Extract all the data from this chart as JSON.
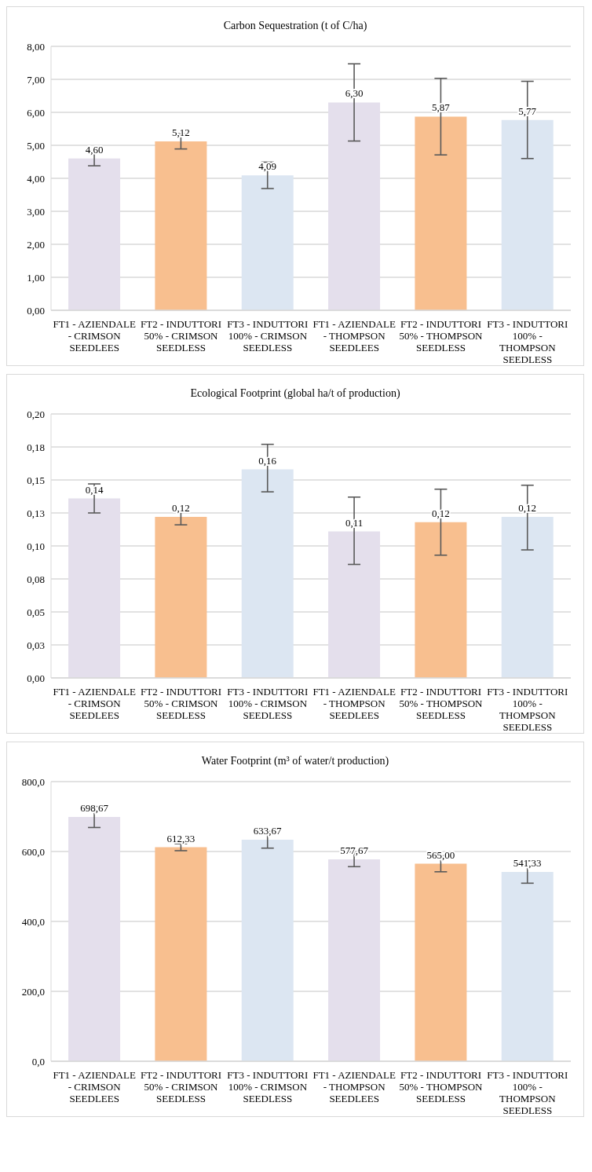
{
  "chart_data": [
    {
      "type": "bar",
      "title": "Carbon Sequestration (t of C/ha)",
      "categories": [
        "FT1 - AZIENDALE - CRIMSON SEEDLEES",
        "FT2 - INDUTTORI 50% - CRIMSON SEEDLESS",
        "FT3 - INDUTTORI 100% - CRIMSON SEEDLESS",
        "FT1 - AZIENDALE - THOMPSON SEEDLEES",
        "FT2 - INDUTTORI 50% - THOMPSON SEEDLESS",
        "FT3 - INDUTTORI 100% - THOMPSON SEEDLESS"
      ],
      "values": [
        4.6,
        5.12,
        4.09,
        6.3,
        5.87,
        5.77
      ],
      "colors": [
        "#e4dfec",
        "#f8bf8f",
        "#dce6f2",
        "#e4dfec",
        "#f8bf8f",
        "#dce6f2"
      ],
      "errors": [
        0.22,
        0.23,
        0.4,
        1.17,
        1.16,
        1.17
      ],
      "value_labels": [
        "4,60",
        "5,12",
        "4,09",
        "6,30",
        "5,87",
        "5,77"
      ],
      "ylim": [
        0,
        8
      ],
      "yticks": [
        {
          "value": 0,
          "label": "0,00"
        },
        {
          "value": 1,
          "label": "1,00"
        },
        {
          "value": 2,
          "label": "2,00"
        },
        {
          "value": 3,
          "label": "3,00"
        },
        {
          "value": 4,
          "label": "4,00"
        },
        {
          "value": 5,
          "label": "5,00"
        },
        {
          "value": 6,
          "label": "6,00"
        },
        {
          "value": 7,
          "label": "7,00"
        },
        {
          "value": 8,
          "label": "8,00"
        }
      ],
      "grid": "y"
    },
    {
      "type": "bar",
      "title": "Ecological Footprint (global ha/t of production)",
      "categories": [
        "FT1 - AZIENDALE - CRIMSON SEEDLEES",
        "FT2 - INDUTTORI 50% - CRIMSON SEEDLESS",
        "FT3 - INDUTTORI 100% - CRIMSON SEEDLESS",
        "FT1 - AZIENDALE - THOMPSON SEEDLEES",
        "FT2 - INDUTTORI 50% - THOMPSON SEEDLESS",
        "FT3 - INDUTTORI 100% - THOMPSON SEEDLESS"
      ],
      "values": [
        0.136,
        0.122,
        0.158,
        0.111,
        0.118,
        0.122
      ],
      "colors": [
        "#e4dfec",
        "#f8bf8f",
        "#dce6f2",
        "#e4dfec",
        "#f8bf8f",
        "#dce6f2"
      ],
      "errors": [
        [
          0.125,
          0.147
        ],
        [
          0.116,
          0.126
        ],
        [
          0.141,
          0.177
        ],
        [
          0.086,
          0.137
        ],
        [
          0.093,
          0.143
        ],
        [
          0.097,
          0.146
        ]
      ],
      "value_labels": [
        "0,14",
        "0,12",
        "0,16",
        "0,11",
        "0,12",
        "0,12"
      ],
      "ylim": [
        0,
        0.2
      ],
      "yticks": [
        {
          "value": 0,
          "label": "0,00"
        },
        {
          "value": 0.025,
          "label": "0,03"
        },
        {
          "value": 0.05,
          "label": "0,05"
        },
        {
          "value": 0.075,
          "label": "0,08"
        },
        {
          "value": 0.1,
          "label": "0,10"
        },
        {
          "value": 0.125,
          "label": "0,13"
        },
        {
          "value": 0.15,
          "label": "0,15"
        },
        {
          "value": 0.175,
          "label": "0,18"
        },
        {
          "value": 0.2,
          "label": "0,20"
        }
      ],
      "grid": "y"
    },
    {
      "type": "bar",
      "title": "Water Footprint (m³ of water/t production)",
      "categories": [
        "FT1 - AZIENDALE - CRIMSON SEEDLEES",
        "FT2 - INDUTTORI 50% - CRIMSON SEEDLESS",
        "FT3 - INDUTTORI 100% - CRIMSON SEEDLESS",
        "FT1 - AZIENDALE - THOMPSON SEEDLEES",
        "FT2 - INDUTTORI 50% - THOMPSON SEEDLESS",
        "FT3 - INDUTTORI 100% - THOMPSON SEEDLESS"
      ],
      "values": [
        698.67,
        612.33,
        633.67,
        577.67,
        565.0,
        541.33
      ],
      "colors": [
        "#e4dfec",
        "#f8bf8f",
        "#dce6f2",
        "#e4dfec",
        "#f8bf8f",
        "#dce6f2"
      ],
      "errors": [
        30,
        10,
        24,
        21,
        23,
        32
      ],
      "value_labels": [
        "698,67",
        "612,33",
        "633,67",
        "577,67",
        "565,00",
        "541,33"
      ],
      "ylim": [
        0,
        800
      ],
      "yticks": [
        {
          "value": 0,
          "label": "0,0"
        },
        {
          "value": 200,
          "label": "200,0"
        },
        {
          "value": 400,
          "label": "400,0"
        },
        {
          "value": 600,
          "label": "600,0"
        },
        {
          "value": 800,
          "label": "800,0"
        }
      ],
      "grid": "y"
    }
  ]
}
